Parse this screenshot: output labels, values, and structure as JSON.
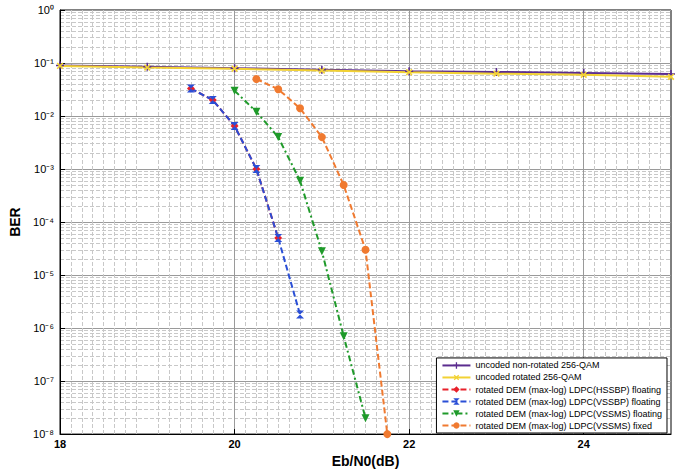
{
  "chart_data": {
    "type": "line",
    "x_label": "Eb/N0(dB)",
    "y_label": "BER",
    "log": "y",
    "grid": true,
    "legend": "lower right",
    "xlim": [
      18,
      25
    ],
    "xticks": [
      18,
      20,
      22,
      24
    ],
    "ylim": [
      1e-08,
      1
    ],
    "yticks": [
      {
        "value": 1e-08,
        "label": "10⁻⁸"
      },
      {
        "value": 1e-07,
        "label": "10⁻⁷"
      },
      {
        "value": 1e-06,
        "label": "10⁻⁶"
      },
      {
        "value": 1e-05,
        "label": "10⁻⁵"
      },
      {
        "value": 0.0001,
        "label": "10⁻⁴"
      },
      {
        "value": 0.001,
        "label": "10⁻³"
      },
      {
        "value": 0.01,
        "label": "10⁻²"
      },
      {
        "value": 0.1,
        "label": "10⁻¹"
      },
      {
        "value": 1,
        "label": "10⁰"
      }
    ],
    "series": [
      {
        "name": "uncoded non-rotated 256-QAM",
        "color": "#5b2c8f",
        "marker": "plus",
        "line_style": "solid",
        "x": [
          18,
          19,
          20,
          21,
          22,
          23,
          24,
          25
        ],
        "values": [
          0.09,
          0.085,
          0.08,
          0.075,
          0.07,
          0.068,
          0.065,
          0.062
        ]
      },
      {
        "name": "uncoded rotated 256-QAM",
        "color": "#f2d234",
        "marker": "x",
        "line_style": "solid",
        "x": [
          18,
          19,
          20,
          21,
          22,
          23,
          24,
          25
        ],
        "values": [
          0.088,
          0.082,
          0.078,
          0.072,
          0.067,
          0.063,
          0.06,
          0.055
        ]
      },
      {
        "name": "rotated DEM (max-log) LDPC(HSSBP) floating",
        "color": "#e8202a",
        "marker": "diamond",
        "line_style": "dashed",
        "x": [
          19.5,
          19.75,
          20,
          20.25,
          20.5
        ],
        "values": [
          0.033,
          0.02,
          0.0065,
          0.001,
          5e-05
        ]
      },
      {
        "name": "rotated DEM (max-log) LDPC(VSSBP) floating",
        "color": "#2a4fd6",
        "marker": "hourglass",
        "line_style": "dashed",
        "x": [
          19.5,
          19.75,
          20,
          20.25,
          20.5,
          20.75
        ],
        "values": [
          0.033,
          0.02,
          0.0065,
          0.001,
          5e-05,
          1.8e-06
        ]
      },
      {
        "name": "rotated DEM (max-log) LDPC(VSSMS) floating",
        "color": "#1f9a2a",
        "marker": "triangle-down",
        "line_style": "dashdot",
        "x": [
          20,
          20.25,
          20.5,
          20.75,
          21,
          21.25,
          21.5
        ],
        "values": [
          0.03,
          0.012,
          0.004,
          0.0006,
          2.8e-05,
          7e-07,
          2e-08
        ]
      },
      {
        "name": "rotated DEM (max-log) LDPC(VSSMS) fixed",
        "color": "#f07a30",
        "marker": "circle",
        "line_style": "dashed",
        "x": [
          20.25,
          20.5,
          20.75,
          21,
          21.25,
          21.5,
          21.75
        ],
        "values": [
          0.05,
          0.032,
          0.014,
          0.004,
          0.0005,
          3e-05,
          1e-08
        ]
      }
    ]
  }
}
